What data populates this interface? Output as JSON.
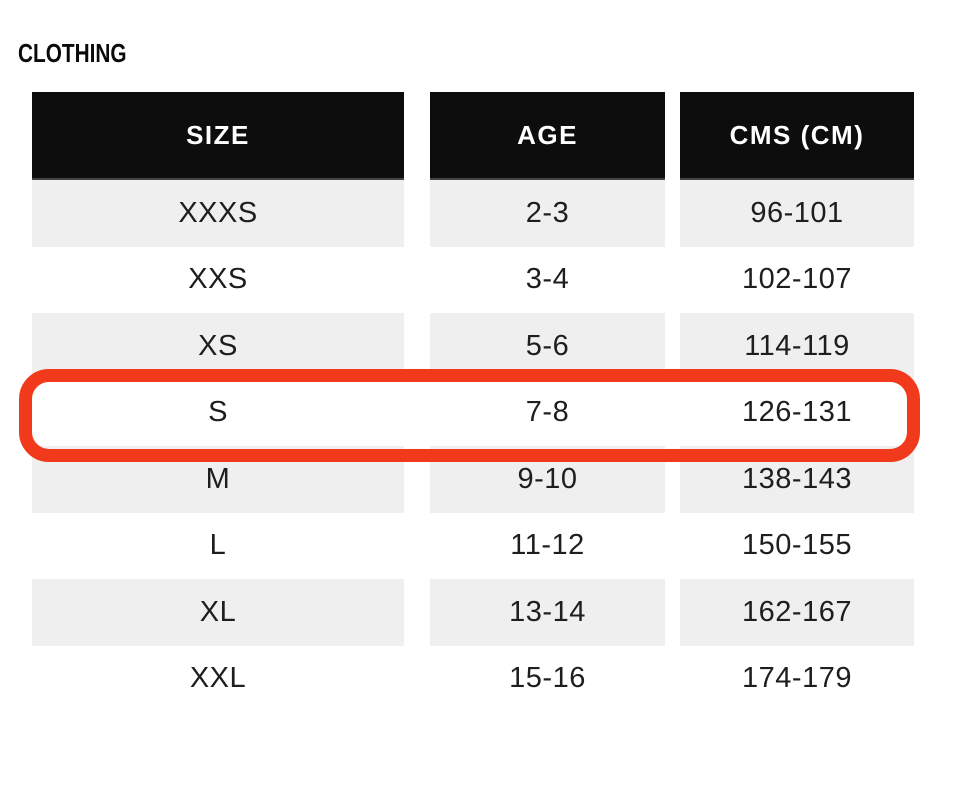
{
  "page": {
    "title": "CLOTHING"
  },
  "table": {
    "columns": [
      "SIZE",
      "AGE",
      "CMS (CM)"
    ],
    "rows": [
      {
        "size": "XXXS",
        "age": "2-3",
        "cms": "96-101"
      },
      {
        "size": "XXS",
        "age": "3-4",
        "cms": "102-107"
      },
      {
        "size": "XS",
        "age": "5-6",
        "cms": "114-119"
      },
      {
        "size": "S",
        "age": "7-8",
        "cms": "126-131"
      },
      {
        "size": "M",
        "age": "9-10",
        "cms": "138-143"
      },
      {
        "size": "L",
        "age": "11-12",
        "cms": "150-155"
      },
      {
        "size": "XL",
        "age": "13-14",
        "cms": "162-167"
      },
      {
        "size": "XXL",
        "age": "15-16",
        "cms": "174-179"
      }
    ],
    "highlighted_size": "S"
  },
  "colors": {
    "header_bg": "#0d0d0d",
    "header_text": "#ffffff",
    "row_stripe": "#efefef",
    "row_text": "#1e1e1e",
    "highlight_border": "#f13a1b"
  }
}
